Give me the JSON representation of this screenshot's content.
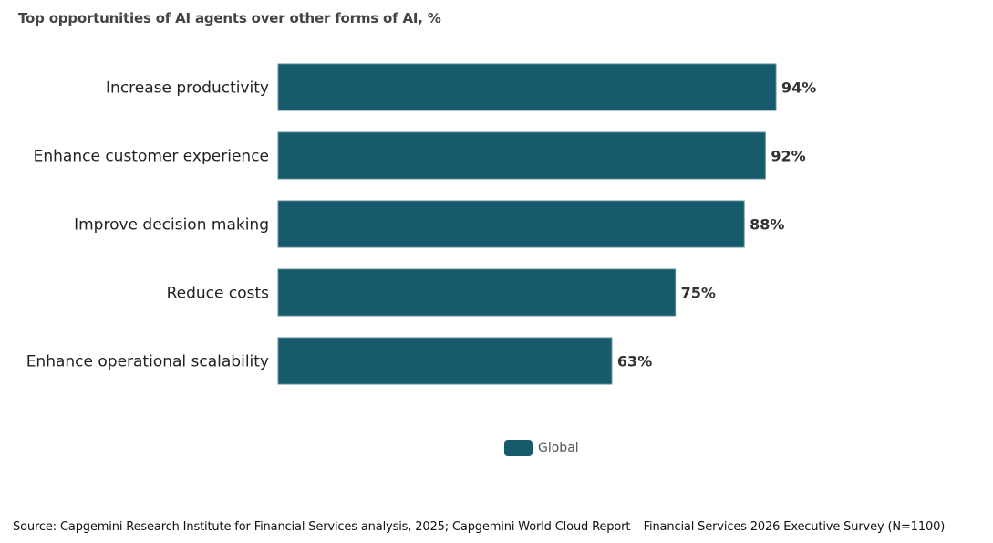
{
  "chart_data": {
    "type": "bar",
    "orientation": "horizontal",
    "title": "Top opportunities of AI agents over other forms of AI, %",
    "categories": [
      "Increase productivity",
      "Enhance customer experience",
      "Improve decision making",
      "Reduce costs",
      "Enhance operational scalability"
    ],
    "series": [
      {
        "name": "Global",
        "values": [
          94,
          92,
          88,
          75,
          63
        ]
      }
    ],
    "data_labels": [
      "94%",
      "92%",
      "88%",
      "75%",
      "63%"
    ],
    "xlim": [
      0,
      100
    ],
    "grid": false,
    "legend": "bottom-center",
    "bar_color": "#175a6b"
  },
  "source": "Source: Capgemini Research Institute for Financial Services analysis, 2025; Capgemini World Cloud Report – Financial Services 2026 Executive Survey (N=1100)"
}
